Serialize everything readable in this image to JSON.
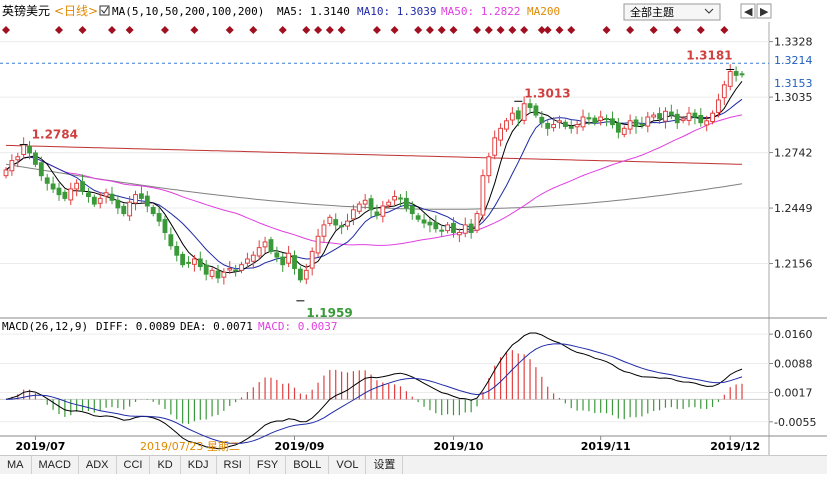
{
  "header": {
    "symbol": "英镑美元",
    "period": "<日线>",
    "indicator_main": "MA(5,10,50,200,100,200)",
    "ma5": "MA5: 1.3140",
    "ma10": "MA10: 1.3039",
    "ma50": "MA50: 1.2822",
    "ma200": "MA200",
    "theme_button": "全部主题",
    "colors": {
      "ma5": "#000000",
      "ma10": "#1f2aa6",
      "ma50": "#e040e0",
      "ma200": "#c03030",
      "ma100": "#808080"
    }
  },
  "price_axis": {
    "ticks": [
      "1.3328",
      "1.3035",
      "1.2742",
      "1.2449",
      "1.2156"
    ],
    "tick_values": [
      1.3328,
      1.3035,
      1.2742,
      1.2449,
      1.2156
    ],
    "markers": [
      {
        "text": "1.3214",
        "color": "#1f5fbf"
      },
      {
        "text": "1.3153",
        "color": "#1f5fbf"
      }
    ]
  },
  "annotations": {
    "high_left": "1.2784",
    "low": "1.1959",
    "high_mid": "1.3013",
    "high_right": "1.3181"
  },
  "macd": {
    "header": "MACD(26,12,9)",
    "diff": "DIFF: 0.0089",
    "dea": "DEA: 0.0071",
    "macd": "MACD: 0.0037",
    "ticks": [
      "0.0160",
      "0.0088",
      "0.0017",
      "-0.0055"
    ],
    "tick_values": [
      0.016,
      0.0088,
      0.0017,
      -0.0055
    ]
  },
  "x_axis": {
    "labels": [
      "2019/07",
      "2019/09",
      "2019/10",
      "2019/11",
      "2019/12"
    ],
    "cursor_label": "2019/07/23 星期二"
  },
  "toolbar": {
    "items": [
      "MA",
      "MACD",
      "ADX",
      "CCI",
      "KD",
      "KDJ",
      "RSI",
      "FSY",
      "BOLL",
      "VOL",
      "设置"
    ]
  },
  "chart_data": {
    "type": "candlestick",
    "price_range": [
      1.19,
      1.34
    ],
    "ma_series": [
      {
        "name": "MA5",
        "color": "#000000"
      },
      {
        "name": "MA10",
        "color": "#1f2aa6"
      },
      {
        "name": "MA50",
        "color": "#e040e0"
      },
      {
        "name": "MA200",
        "color": "#c03030"
      }
    ],
    "key_levels": {
      "high_jun": 1.2784,
      "low_sep": 1.1959,
      "high_oct": 1.3013,
      "high_dec": 1.3181,
      "last_marker": 1.3214,
      "last_close": 1.3153
    },
    "close": [
      1.265,
      1.27,
      1.272,
      1.2784,
      1.274,
      1.268,
      1.262,
      1.258,
      1.255,
      1.252,
      1.25,
      1.255,
      1.258,
      1.254,
      1.251,
      1.247,
      1.25,
      1.253,
      1.249,
      1.245,
      1.242,
      1.248,
      1.252,
      1.25,
      1.246,
      1.242,
      1.238,
      1.232,
      1.225,
      1.22,
      1.215,
      1.216,
      1.218,
      1.214,
      1.21,
      1.212,
      1.208,
      1.211,
      1.213,
      1.212,
      1.215,
      1.218,
      1.22,
      1.224,
      1.227,
      1.222,
      1.219,
      1.215,
      1.221,
      1.213,
      1.207,
      1.212,
      1.222,
      1.23,
      1.236,
      1.24,
      1.236,
      1.235,
      1.238,
      1.244,
      1.247,
      1.249,
      1.244,
      1.241,
      1.246,
      1.248,
      1.251,
      1.25,
      1.245,
      1.242,
      1.239,
      1.237,
      1.236,
      1.234,
      1.233,
      1.236,
      1.232,
      1.232,
      1.236,
      1.232,
      1.242,
      1.262,
      1.272,
      1.282,
      1.287,
      1.291,
      1.295,
      1.292,
      1.3,
      1.298,
      1.294,
      1.29,
      1.287,
      1.289,
      1.291,
      1.288,
      1.287,
      1.289,
      1.293,
      1.292,
      1.29,
      1.293,
      1.292,
      1.289,
      1.285,
      1.287,
      1.291,
      1.288,
      1.289,
      1.293,
      1.294,
      1.292,
      1.296,
      1.294,
      1.29,
      1.292,
      1.295,
      1.293,
      1.29,
      1.291,
      1.295,
      1.302,
      1.31,
      1.317,
      1.315,
      1.3153
    ],
    "macd_series": [
      "DIFF",
      "DEA",
      "MACD histogram"
    ]
  }
}
